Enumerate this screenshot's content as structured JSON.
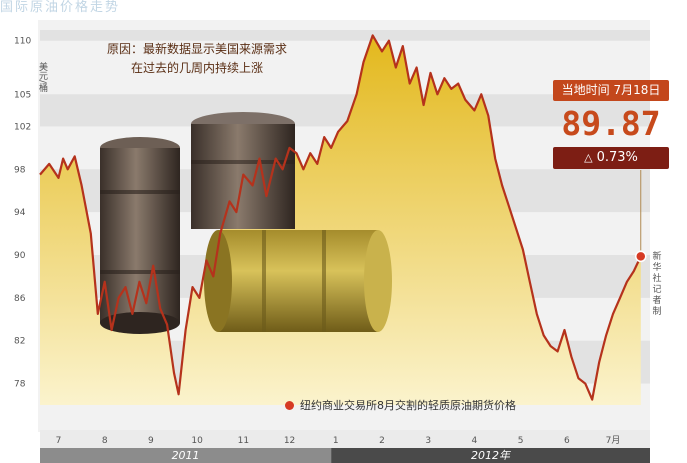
{
  "banner_text": "国际原油价格走势",
  "annotation": {
    "line1": "原因：最新数据显示美国来源需求",
    "line2": "在过去的几周内持续上涨"
  },
  "callout": {
    "time_label": "当地时间 7月18日",
    "price": "89.87",
    "change": "0.73%",
    "change_direction": "up"
  },
  "legend_label": "纽约商业交易所8月交割的轻质原油期货价格",
  "source_note": "新华社记者 制",
  "colors": {
    "line": "#b5321c",
    "area_top": "#e3b81c",
    "area_bottom": "#fbf3cd",
    "callout_time_bg": "#c3471c",
    "callout_change_bg": "#7d1e14",
    "year_bar_2011": "#8c8c8c",
    "year_bar_2012": "#4a4a4a"
  },
  "chart_data": {
    "type": "line",
    "ylabel": "美元/桶",
    "yticks": [
      110,
      105,
      102,
      98,
      94,
      90,
      86,
      82,
      78
    ],
    "ylim": [
      76,
      111
    ],
    "xticks": [
      "7",
      "8",
      "9",
      "10",
      "11",
      "12",
      "1",
      "2",
      "3",
      "4",
      "5",
      "6",
      "7月"
    ],
    "x_range": [
      6.6,
      19.8
    ],
    "years": [
      {
        "label": "2011",
        "start": 6.6,
        "end": 12.9
      },
      {
        "label": "2012年",
        "start": 12.9,
        "end": 19.8
      }
    ],
    "series": [
      {
        "x": [
          6.6,
          6.8,
          7.0,
          7.1,
          7.2,
          7.35,
          7.5,
          7.7,
          7.85,
          8.0,
          8.15,
          8.3,
          8.45,
          8.6,
          8.75,
          8.9,
          9.05,
          9.2,
          9.35,
          9.5,
          9.6,
          9.75,
          9.9,
          10.05,
          10.2,
          10.35,
          10.5,
          10.7,
          10.85,
          11.0,
          11.2,
          11.35,
          11.5,
          11.7,
          11.85,
          12.0,
          12.15,
          12.3,
          12.45,
          12.6,
          12.75,
          12.9,
          13.05,
          13.25,
          13.45,
          13.6,
          13.8,
          14.0,
          14.15,
          14.3,
          14.45,
          14.6,
          14.75,
          14.9,
          15.05,
          15.2,
          15.35,
          15.5,
          15.65,
          15.8,
          16.0,
          16.15,
          16.3,
          16.45,
          16.6,
          16.75,
          16.9,
          17.05,
          17.2,
          17.35,
          17.5,
          17.65,
          17.8,
          17.95,
          18.1,
          18.25,
          18.4,
          18.55,
          18.7,
          18.85,
          19.0,
          19.15,
          19.3,
          19.45,
          19.6
        ],
        "y": [
          97.5,
          98.5,
          97.2,
          99.0,
          98.0,
          99.2,
          96.5,
          92.0,
          84.5,
          87.5,
          83.0,
          86.0,
          87.0,
          84.5,
          87.5,
          85.5,
          89.0,
          85.0,
          83.5,
          79.0,
          77.0,
          83.0,
          87.0,
          86.0,
          89.5,
          88.0,
          92.0,
          95.0,
          94.0,
          97.5,
          96.5,
          99.0,
          95.5,
          99.0,
          98.0,
          100.0,
          99.5,
          98.0,
          99.5,
          98.5,
          101.0,
          100.0,
          101.5,
          102.5,
          105.0,
          108.0,
          110.5,
          109.0,
          110.0,
          107.5,
          109.5,
          106.0,
          107.5,
          104.0,
          107.0,
          105.0,
          106.5,
          105.5,
          106.0,
          104.5,
          103.5,
          105.0,
          103.0,
          99.0,
          96.5,
          94.5,
          92.5,
          90.5,
          87.5,
          84.5,
          82.5,
          81.5,
          81.0,
          83.0,
          80.5,
          78.5,
          78.0,
          76.5,
          80.0,
          82.5,
          84.5,
          86.0,
          87.5,
          88.5,
          89.87
        ]
      }
    ]
  }
}
